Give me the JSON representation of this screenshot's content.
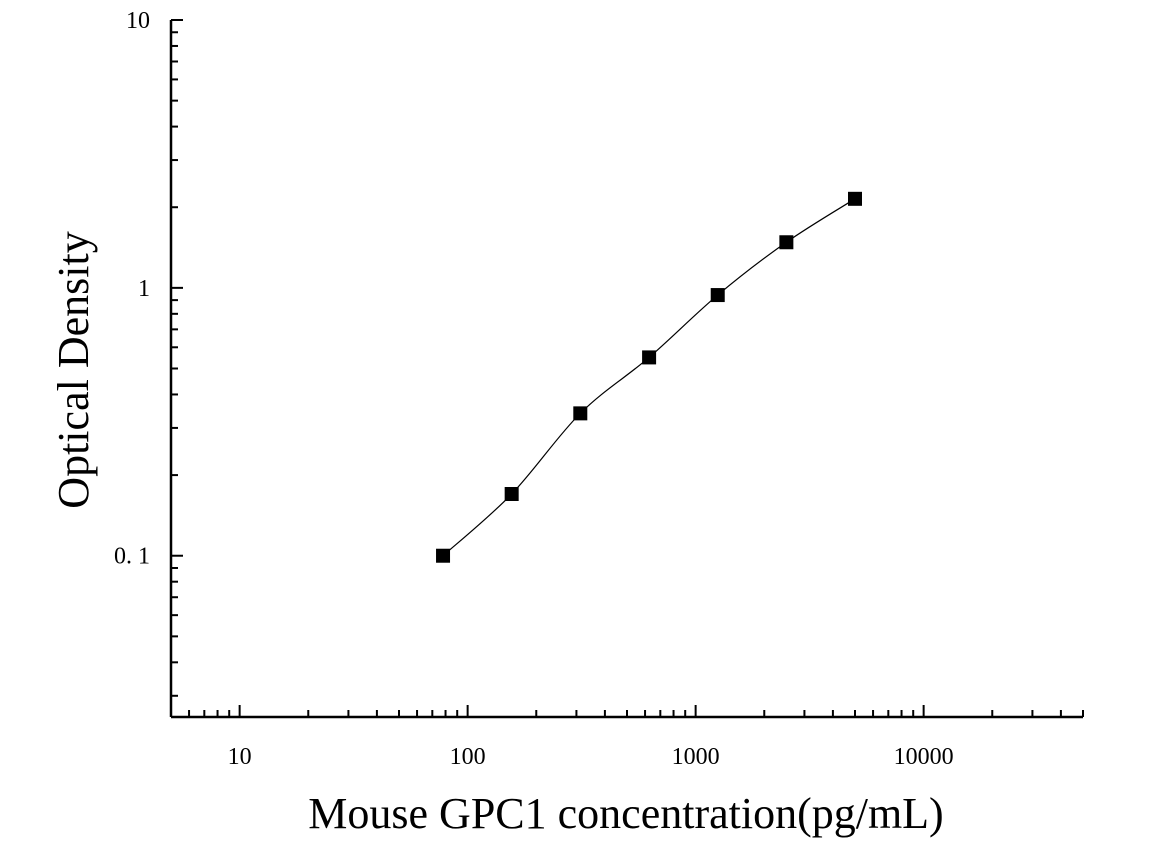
{
  "chart_data": {
    "type": "scatter",
    "xlabel": "Mouse GPC1 concentration(pg/mL)",
    "ylabel": "Optical Density",
    "xscale": "log",
    "yscale": "log",
    "xlim": [
      5,
      50000
    ],
    "ylim": [
      0.025,
      10
    ],
    "x_ticks": [
      10,
      100,
      1000,
      10000
    ],
    "x_tick_labels": [
      "10",
      "100",
      "1000",
      "10000"
    ],
    "y_ticks": [
      0.1,
      1,
      10
    ],
    "y_tick_labels": [
      "0. 1",
      "1",
      "10"
    ],
    "grid": false,
    "marker": "square",
    "fit_line": true,
    "x": [
      78,
      156,
      312,
      625,
      1250,
      2500,
      5000
    ],
    "y": [
      0.1,
      0.17,
      0.34,
      0.55,
      0.94,
      1.48,
      2.15
    ],
    "colors": {
      "marker": "#000000",
      "line": "#000000",
      "axis": "#000000"
    }
  }
}
